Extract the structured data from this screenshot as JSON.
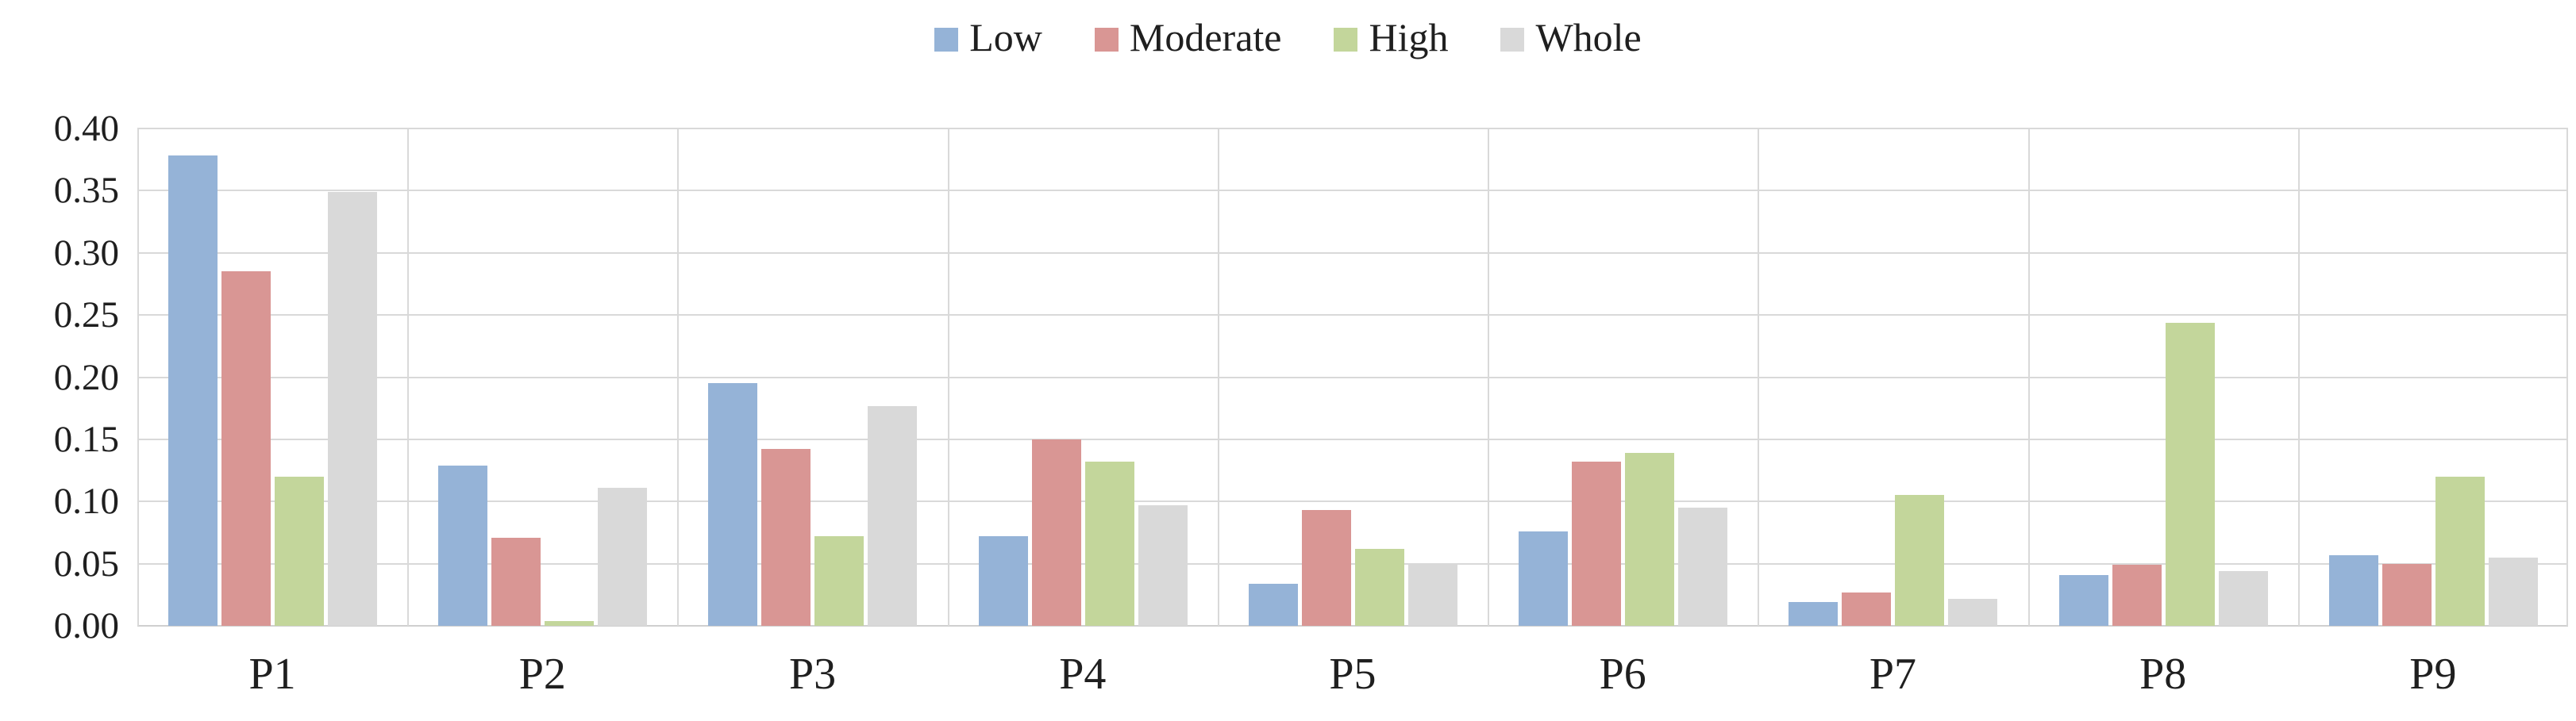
{
  "chart_data": {
    "type": "bar",
    "title": "",
    "xlabel": "",
    "ylabel": "",
    "categories": [
      "P1",
      "P2",
      "P3",
      "P4",
      "P5",
      "P6",
      "P7",
      "P8",
      "P9"
    ],
    "series": [
      {
        "name": "Low",
        "color": "#95B3D7",
        "values": [
          0.378,
          0.129,
          0.195,
          0.072,
          0.034,
          0.076,
          0.019,
          0.041,
          0.057
        ]
      },
      {
        "name": "Moderate",
        "color": "#D99694",
        "values": [
          0.285,
          0.071,
          0.142,
          0.15,
          0.093,
          0.132,
          0.027,
          0.049,
          0.05
        ]
      },
      {
        "name": "High",
        "color": "#C3D69B",
        "values": [
          0.12,
          0.004,
          0.072,
          0.132,
          0.062,
          0.139,
          0.105,
          0.244,
          0.12
        ]
      },
      {
        "name": "Whole",
        "color": "#D9D9D9",
        "values": [
          0.349,
          0.111,
          0.177,
          0.097,
          0.05,
          0.095,
          0.022,
          0.044,
          0.055
        ]
      }
    ],
    "ylim": [
      0,
      0.4
    ],
    "ytick_step": 0.05,
    "ytick_labels": [
      "0.00",
      "0.05",
      "0.10",
      "0.15",
      "0.20",
      "0.25",
      "0.30",
      "0.35",
      "0.40"
    ],
    "grid": true,
    "gridline_color": "#D9D9D9",
    "legend_position": "top-center",
    "legend_entries": [
      "Low",
      "Moderate",
      "High",
      "Whole"
    ],
    "text_color": "#1F1F1F"
  }
}
